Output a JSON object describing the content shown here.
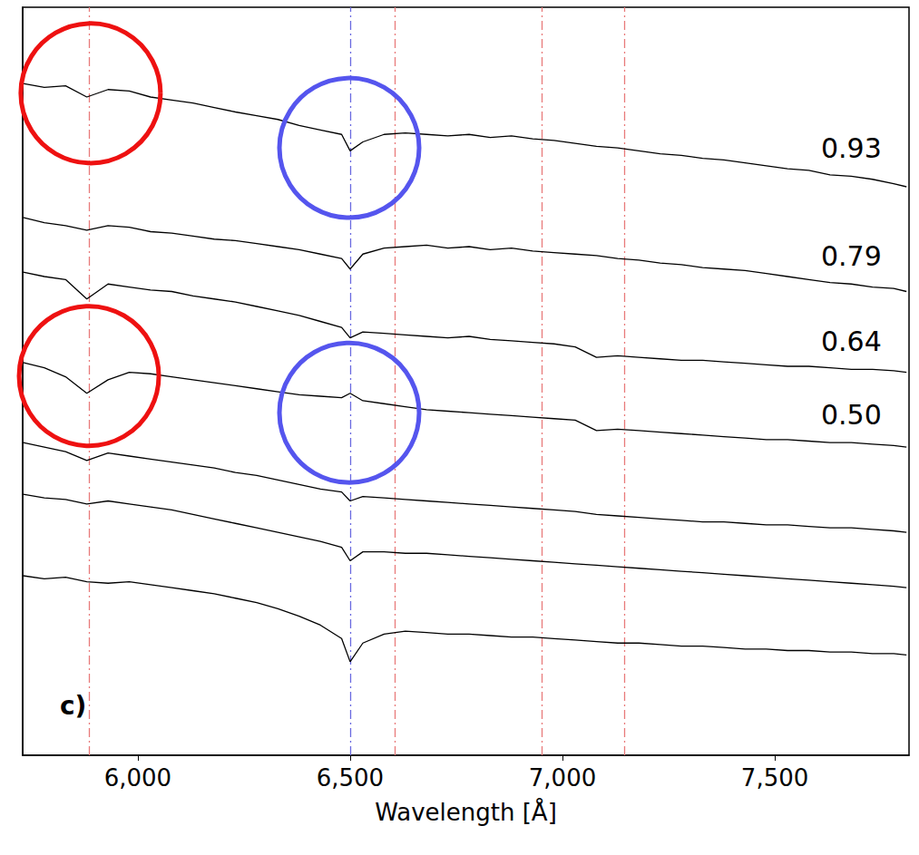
{
  "chart_data": {
    "type": "line",
    "x_label": "Wavelength [Å]",
    "panel_label": "c)",
    "xlim": [
      5729,
      7816
    ],
    "xticks": [
      6000,
      6500,
      7000,
      7500
    ],
    "ylim": [
      0,
      10
    ],
    "tick_labels": "x",
    "grid": false,
    "x": [
      5730,
      5780,
      5830,
      5880,
      5930,
      5980,
      6030,
      6080,
      6130,
      6180,
      6230,
      6280,
      6330,
      6380,
      6430,
      6480,
      6500,
      6530,
      6580,
      6630,
      6680,
      6730,
      6780,
      6830,
      6880,
      6930,
      6980,
      7030,
      7080,
      7130,
      7180,
      7230,
      7280,
      7330,
      7380,
      7430,
      7480,
      7530,
      7580,
      7630,
      7680,
      7730,
      7780,
      7810
    ],
    "series": [
      {
        "name": "0.93",
        "color": "#000000",
        "line_style": "solid",
        "values": [
          8.98,
          8.93,
          8.95,
          8.8,
          8.9,
          8.88,
          8.8,
          8.76,
          8.72,
          8.66,
          8.6,
          8.55,
          8.5,
          8.42,
          8.36,
          8.3,
          8.08,
          8.2,
          8.3,
          8.32,
          8.3,
          8.28,
          8.3,
          8.26,
          8.28,
          8.24,
          8.22,
          8.18,
          8.14,
          8.12,
          8.08,
          8.04,
          8.02,
          7.98,
          7.96,
          7.92,
          7.88,
          7.84,
          7.82,
          7.76,
          7.74,
          7.7,
          7.64,
          7.6
        ]
      },
      {
        "name": "0.79",
        "color": "#000000",
        "line_style": "solid",
        "values": [
          7.19,
          7.12,
          7.08,
          7.02,
          7.08,
          7.06,
          7.0,
          6.98,
          6.94,
          6.9,
          6.88,
          6.84,
          6.8,
          6.76,
          6.7,
          6.64,
          6.5,
          6.7,
          6.78,
          6.8,
          6.82,
          6.78,
          6.8,
          6.76,
          6.78,
          6.74,
          6.72,
          6.7,
          6.68,
          6.64,
          6.62,
          6.58,
          6.56,
          6.52,
          6.5,
          6.48,
          6.44,
          6.4,
          6.36,
          6.32,
          6.3,
          6.26,
          6.24,
          6.2
        ]
      },
      {
        "name": "0.64",
        "color": "#000000",
        "line_style": "solid",
        "values": [
          6.46,
          6.4,
          6.36,
          6.1,
          6.3,
          6.26,
          6.22,
          6.2,
          6.14,
          6.1,
          6.06,
          6.0,
          5.94,
          5.88,
          5.8,
          5.72,
          5.58,
          5.66,
          5.64,
          5.62,
          5.6,
          5.58,
          5.6,
          5.56,
          5.54,
          5.52,
          5.5,
          5.46,
          5.32,
          5.34,
          5.32,
          5.3,
          5.28,
          5.28,
          5.26,
          5.24,
          5.22,
          5.2,
          5.2,
          5.18,
          5.16,
          5.16,
          5.14,
          5.12
        ]
      },
      {
        "name": "0.50",
        "color": "#000000",
        "line_style": "solid",
        "values": [
          5.25,
          5.18,
          5.06,
          4.84,
          5.02,
          5.12,
          5.1,
          5.06,
          5.02,
          4.98,
          4.94,
          4.9,
          4.86,
          4.82,
          4.8,
          4.78,
          4.84,
          4.74,
          4.7,
          4.66,
          4.62,
          4.6,
          4.58,
          4.56,
          4.54,
          4.52,
          4.5,
          4.48,
          4.34,
          4.36,
          4.34,
          4.32,
          4.3,
          4.28,
          4.26,
          4.24,
          4.22,
          4.22,
          4.2,
          4.18,
          4.18,
          4.16,
          4.14,
          4.12
        ]
      },
      {
        "color": "#000000",
        "line_style": "solid",
        "values": [
          4.18,
          4.12,
          4.06,
          3.94,
          4.04,
          4.0,
          3.96,
          3.92,
          3.88,
          3.84,
          3.78,
          3.74,
          3.68,
          3.62,
          3.56,
          3.52,
          3.4,
          3.46,
          3.44,
          3.42,
          3.4,
          3.38,
          3.36,
          3.34,
          3.32,
          3.3,
          3.28,
          3.26,
          3.22,
          3.2,
          3.18,
          3.16,
          3.14,
          3.12,
          3.12,
          3.1,
          3.08,
          3.08,
          3.06,
          3.04,
          3.04,
          3.02,
          3.0,
          2.98
        ]
      },
      {
        "color": "#000000",
        "line_style": "solid",
        "values": [
          3.49,
          3.44,
          3.42,
          3.36,
          3.4,
          3.36,
          3.32,
          3.28,
          3.22,
          3.16,
          3.1,
          3.04,
          2.98,
          2.92,
          2.86,
          2.78,
          2.6,
          2.72,
          2.72,
          2.7,
          2.7,
          2.68,
          2.66,
          2.64,
          2.62,
          2.6,
          2.58,
          2.56,
          2.54,
          2.52,
          2.5,
          2.48,
          2.46,
          2.44,
          2.42,
          2.4,
          2.38,
          2.36,
          2.34,
          2.32,
          2.3,
          2.28,
          2.26,
          2.24
        ]
      },
      {
        "color": "#000000",
        "line_style": "solid",
        "values": [
          2.4,
          2.36,
          2.38,
          2.32,
          2.3,
          2.32,
          2.28,
          2.24,
          2.2,
          2.16,
          2.1,
          2.04,
          1.96,
          1.86,
          1.74,
          1.56,
          1.25,
          1.5,
          1.62,
          1.66,
          1.64,
          1.62,
          1.62,
          1.6,
          1.58,
          1.58,
          1.56,
          1.54,
          1.52,
          1.5,
          1.5,
          1.48,
          1.46,
          1.46,
          1.44,
          1.42,
          1.42,
          1.4,
          1.4,
          1.38,
          1.38,
          1.36,
          1.36,
          1.34
        ]
      }
    ],
    "vlines": [
      {
        "x": 5885,
        "color": "#e87a7a",
        "line_style": "dashdot"
      },
      {
        "x": 6500,
        "color": "#6a6ae0",
        "line_style": "dashdot"
      },
      {
        "x": 6605,
        "color": "#e87a7a",
        "line_style": "dashdot"
      },
      {
        "x": 6951,
        "color": "#e87a7a",
        "line_style": "dashdot"
      },
      {
        "x": 7145,
        "color": "#e87a7a",
        "line_style": "dashdot"
      }
    ],
    "circles": [
      {
        "x": 5889,
        "y": 8.85,
        "color": "#ee1111"
      },
      {
        "x": 6498,
        "y": 8.12,
        "color": "#5555ee"
      },
      {
        "x": 5885,
        "y": 5.07,
        "color": "#ee1111"
      },
      {
        "x": 6498,
        "y": 4.58,
        "color": "#5555ee"
      }
    ]
  }
}
